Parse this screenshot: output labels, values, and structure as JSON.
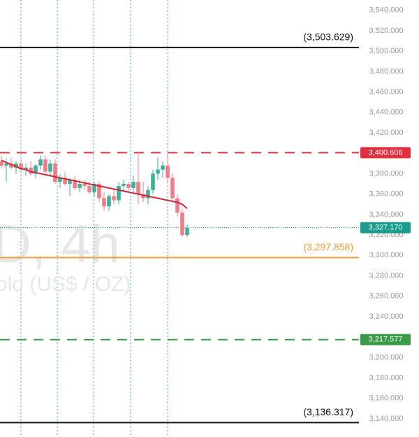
{
  "chart_data": {
    "type": "candlestick",
    "watermark": [
      "D, 4h",
      "old (US$ / OZ)"
    ],
    "ylim": [
      3122.2,
      3550.1
    ],
    "yticks": [
      {
        "value": 3140,
        "label": "3,140.000"
      },
      {
        "value": 3160,
        "label": "3,160.000"
      },
      {
        "value": 3180,
        "label": "3,180.000"
      },
      {
        "value": 3200,
        "label": "3,200.000"
      },
      {
        "value": 3220,
        "label": "3,220.000"
      },
      {
        "value": 3240,
        "label": "3,240.000"
      },
      {
        "value": 3260,
        "label": "3,260.000"
      },
      {
        "value": 3280,
        "label": "3,280.000"
      },
      {
        "value": 3300,
        "label": "3,300.000"
      },
      {
        "value": 3320,
        "label": "3,320.000"
      },
      {
        "value": 3340,
        "label": "3,340.000"
      },
      {
        "value": 3360,
        "label": "3,360.000"
      },
      {
        "value": 3380,
        "label": "3,380.000"
      },
      {
        "value": 3400,
        "label": "3,400.000"
      },
      {
        "value": 3420,
        "label": "3,420.000"
      },
      {
        "value": 3440,
        "label": "3,440.000"
      },
      {
        "value": 3460,
        "label": "3,460.000"
      },
      {
        "value": 3480,
        "label": "3,480.000"
      },
      {
        "value": 3500,
        "label": "3,500.000"
      },
      {
        "value": 3520,
        "label": "3,520.000"
      },
      {
        "value": 3540,
        "label": "3,540.000"
      }
    ],
    "up_color": "#3fae9a",
    "down_color": "#ef7f87",
    "open": [
      3392,
      3388,
      3390,
      3386,
      3390,
      3384,
      3386,
      3380,
      3388,
      3394,
      3382,
      3390,
      3372,
      3376,
      3370,
      3374,
      3366,
      3370,
      3368,
      3362,
      3370,
      3356,
      3348,
      3358,
      3354,
      3368,
      3370,
      3366,
      3372,
      3360,
      3356,
      3364,
      3380,
      3384,
      3388,
      3376,
      3356,
      3342,
      3320
    ],
    "high": [
      3398,
      3395,
      3396,
      3392,
      3394,
      3390,
      3392,
      3390,
      3398,
      3398,
      3394,
      3394,
      3380,
      3382,
      3376,
      3378,
      3374,
      3374,
      3372,
      3372,
      3372,
      3362,
      3360,
      3364,
      3372,
      3374,
      3372,
      3378,
      3402,
      3372,
      3368,
      3384,
      3396,
      3392,
      3398,
      3380,
      3360,
      3346,
      3330
    ],
    "low": [
      3385,
      3372,
      3384,
      3380,
      3382,
      3378,
      3378,
      3376,
      3384,
      3380,
      3378,
      3370,
      3366,
      3368,
      3358,
      3364,
      3362,
      3364,
      3360,
      3358,
      3352,
      3344,
      3344,
      3350,
      3350,
      3362,
      3362,
      3362,
      3350,
      3352,
      3350,
      3360,
      3374,
      3376,
      3372,
      3352,
      3338,
      3318,
      3318
    ],
    "close": [
      3388,
      3390,
      3386,
      3390,
      3384,
      3386,
      3380,
      3388,
      3394,
      3382,
      3390,
      3372,
      3376,
      3370,
      3374,
      3366,
      3370,
      3368,
      3362,
      3370,
      3356,
      3348,
      3358,
      3354,
      3368,
      3370,
      3366,
      3372,
      3360,
      3356,
      3364,
      3380,
      3384,
      3388,
      3376,
      3356,
      3342,
      3320,
      3327.17
    ],
    "moving_average": {
      "color": "#c62838",
      "values": [
        3393,
        3391,
        3389,
        3387,
        3385,
        3384,
        3382,
        3381,
        3380,
        3379,
        3378,
        3377,
        3376,
        3375,
        3374,
        3373,
        3372,
        3371,
        3370,
        3369,
        3368,
        3367,
        3366,
        3365,
        3364,
        3363,
        3362,
        3361,
        3360,
        3359,
        3358,
        3357,
        3356,
        3355,
        3354,
        3353,
        3352,
        3350,
        3346
      ]
    },
    "levels": [
      {
        "value": 3503.629,
        "label": "(3,503.629)",
        "color": "#111111",
        "style": "solid",
        "tag": false
      },
      {
        "value": 3400.606,
        "label": "3,400.606",
        "color": "#e0303f",
        "style": "dashed",
        "tag": true
      },
      {
        "value": 3327.17,
        "label": "3,327.170",
        "color": "#1a9c8a",
        "style": "dotted",
        "tag": true
      },
      {
        "value": 3297.858,
        "label": "(3,297.858)",
        "color": "#f29b38",
        "style": "solid",
        "tag": false
      },
      {
        "value": 3217.577,
        "label": "3,217.577",
        "color": "#3a9a48",
        "style": "dashed",
        "tag": true
      },
      {
        "value": 3136.317,
        "label": "(3,136.317)",
        "color": "#111111",
        "style": "solid",
        "tag": false
      }
    ]
  }
}
